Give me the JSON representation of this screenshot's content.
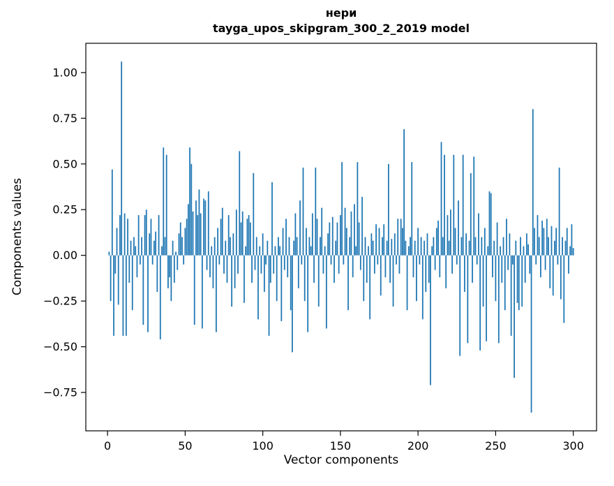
{
  "figure": {
    "title_line1": "нери",
    "title_line2": "tayga_upos_skipgram_300_2_2019 model",
    "xlabel": "Vector components",
    "ylabel": "Components values"
  },
  "chart_data": {
    "type": "bar",
    "title": "нери — tayga_upos_skipgram_300_2_2019 model",
    "xlabel": "Vector components",
    "ylabel": "Components values",
    "bar_color": "#1f77b4",
    "axis_color": "#000000",
    "background": "#ffffff",
    "grid": false,
    "legend": null,
    "x_start": 1,
    "xlim": [
      -14,
      315
    ],
    "ylim": [
      -0.96,
      1.16
    ],
    "x_ticks": [
      0,
      50,
      100,
      150,
      200,
      250,
      300
    ],
    "y_ticks": [
      1.0,
      0.75,
      0.5,
      0.25,
      0.0,
      -0.25,
      -0.5,
      -0.75
    ],
    "values": [
      0.02,
      -0.25,
      0.47,
      -0.44,
      -0.1,
      0.15,
      -0.27,
      0.22,
      1.06,
      -0.44,
      0.23,
      -0.44,
      0.2,
      -0.15,
      0.08,
      -0.3,
      0.1,
      0.05,
      -0.12,
      0.22,
      -0.05,
      0.1,
      -0.38,
      0.22,
      0.25,
      -0.42,
      0.12,
      0.2,
      -0.05,
      0.08,
      0.13,
      -0.2,
      0.22,
      -0.46,
      0.05,
      0.59,
      0.1,
      0.55,
      -0.18,
      -0.12,
      -0.25,
      0.08,
      -0.15,
      0.02,
      -0.08,
      0.12,
      0.18,
      0.1,
      -0.05,
      0.15,
      0.2,
      0.28,
      0.59,
      0.5,
      0.24,
      -0.38,
      0.3,
      0.22,
      0.36,
      0.23,
      -0.4,
      0.31,
      0.3,
      -0.08,
      0.35,
      -0.12,
      0.05,
      -0.18,
      0.1,
      -0.42,
      0.15,
      -0.05,
      0.2,
      0.26,
      -0.1,
      0.08,
      -0.15,
      0.22,
      0.1,
      -0.28,
      0.12,
      -0.18,
      0.25,
      -0.1,
      0.57,
      0.18,
      0.24,
      -0.26,
      0.05,
      0.2,
      0.22,
      0.18,
      -0.15,
      0.45,
      -0.08,
      0.1,
      -0.35,
      0.05,
      -0.1,
      0.12,
      -0.2,
      -0.05,
      0.08,
      -0.44,
      -0.15,
      0.4,
      -0.1,
      0.05,
      -0.25,
      0.1,
      0.05,
      -0.36,
      0.15,
      -0.08,
      0.2,
      -0.12,
      0.1,
      -0.3,
      -0.53,
      0.08,
      0.23,
      0.1,
      -0.18,
      0.3,
      -0.05,
      0.48,
      -0.25,
      0.15,
      -0.42,
      0.1,
      0.05,
      0.23,
      -0.15,
      0.48,
      0.2,
      -0.28,
      0.1,
      0.26,
      -0.1,
      0.05,
      -0.4,
      0.12,
      0.18,
      -0.05,
      0.21,
      -0.15,
      0.08,
      0.18,
      -0.1,
      0.22,
      0.51,
      -0.05,
      0.26,
      0.15,
      -0.3,
      0.1,
      0.24,
      -0.12,
      0.28,
      0.05,
      0.51,
      0.18,
      -0.08,
      0.32,
      -0.25,
      0.1,
      -0.15,
      0.05,
      -0.35,
      0.12,
      0.08,
      -0.1,
      0.17,
      -0.05,
      0.15,
      -0.22,
      0.1,
      0.17,
      -0.12,
      0.08,
      0.5,
      -0.15,
      0.09,
      -0.28,
      0.12,
      -0.05,
      0.2,
      -0.1,
      0.2,
      0.15,
      0.69,
      0.08,
      -0.3,
      0.05,
      0.1,
      0.51,
      -0.12,
      0.08,
      -0.25,
      0.15,
      -0.05,
      0.1,
      -0.35,
      0.08,
      -0.2,
      0.12,
      -0.15,
      -0.71,
      0.05,
      0.1,
      -0.08,
      0.15,
      0.19,
      -0.12,
      0.62,
      0.1,
      0.55,
      -0.18,
      0.22,
      0.08,
      0.25,
      -0.1,
      0.55,
      0.15,
      -0.05,
      0.3,
      -0.55,
      0.1,
      0.55,
      -0.2,
      0.12,
      -0.48,
      0.08,
      0.45,
      -0.15,
      0.54,
      0.1,
      -0.05,
      0.23,
      -0.52,
      0.1,
      -0.28,
      0.15,
      -0.47,
      0.05,
      0.35,
      0.34,
      -0.12,
      0.08,
      -0.25,
      0.18,
      -0.48,
      0.05,
      -0.15,
      0.1,
      -0.3,
      0.2,
      -0.08,
      0.12,
      -0.44,
      -0.05,
      -0.67,
      0.08,
      -0.26,
      -0.3,
      0.1,
      -0.28,
      0.05,
      -0.15,
      0.12,
      0.06,
      -0.1,
      -0.86,
      0.8,
      0.15,
      -0.05,
      0.22,
      0.1,
      -0.12,
      0.19,
      0.15,
      -0.08,
      0.2,
      0.1,
      -0.18,
      0.16,
      -0.22,
      0.08,
      0.15,
      -0.05,
      0.48,
      -0.24,
      0.1,
      -0.37,
      0.08,
      0.15,
      -0.1,
      0.05,
      0.17,
      0.04
    ]
  }
}
